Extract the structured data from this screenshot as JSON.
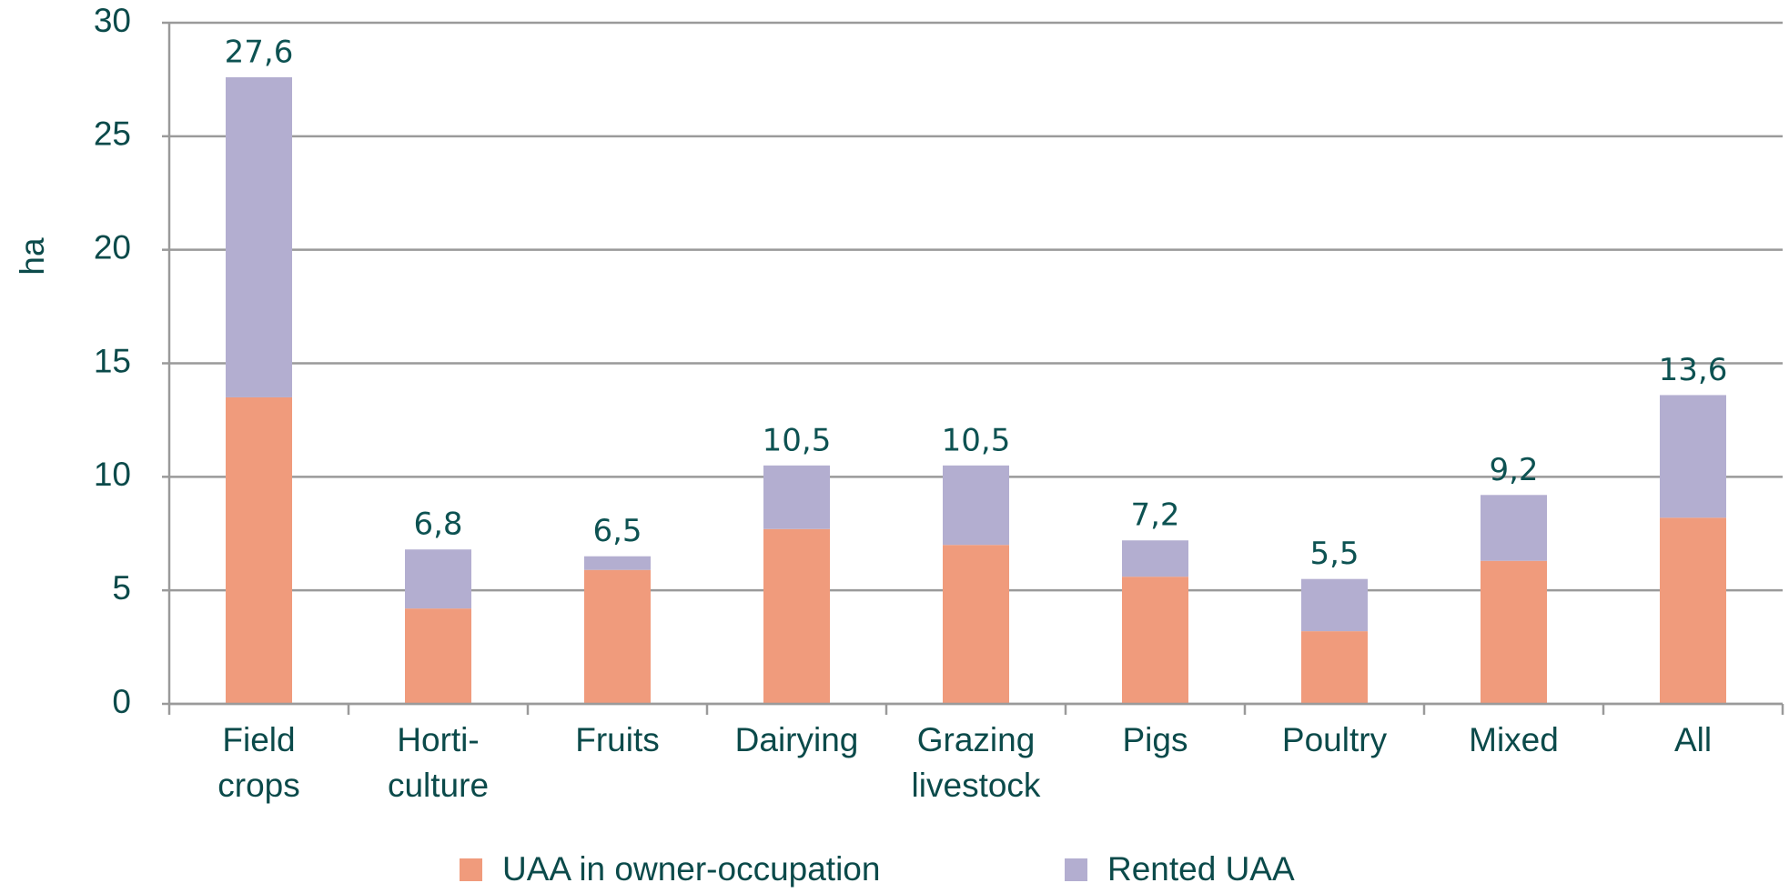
{
  "chart_data": {
    "type": "stacked_bar",
    "y_label": "ha",
    "categories": [
      [
        "Field",
        "crops"
      ],
      [
        "Horti-",
        "culture"
      ],
      [
        "Fruits"
      ],
      [
        "Dairying"
      ],
      [
        "Grazing",
        "livestock"
      ],
      [
        "Pigs"
      ],
      [
        "Poultry"
      ],
      [
        "Mixed"
      ],
      [
        "All"
      ]
    ],
    "series": [
      {
        "name": "UAA in owner-occupation",
        "color": "#f09b7c",
        "values": [
          13.5,
          4.2,
          5.9,
          7.7,
          7.0,
          5.6,
          3.2,
          6.3,
          8.2
        ]
      },
      {
        "name": "Rented UAA",
        "color": "#b3aed0",
        "values": [
          14.1,
          2.6,
          0.6,
          2.8,
          3.5,
          1.6,
          2.3,
          2.9,
          5.4
        ]
      }
    ],
    "totals": [
      27.6,
      6.8,
      6.5,
      10.5,
      10.5,
      7.2,
      5.5,
      9.2,
      13.6
    ],
    "total_labels": [
      "27,6",
      "6,8",
      "6,5",
      "10,5",
      "10,5",
      "7,2",
      "5,5",
      "9,2",
      "13,6"
    ],
    "ylim": [
      0,
      30
    ],
    "yticks": [
      0,
      5,
      10,
      15,
      20,
      25,
      30
    ],
    "grid": true,
    "legend": "bottom"
  }
}
